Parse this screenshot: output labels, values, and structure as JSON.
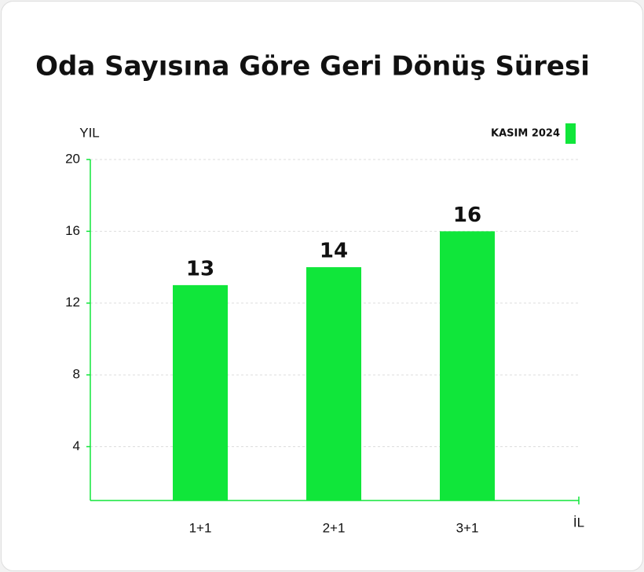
{
  "chart_data": {
    "type": "bar",
    "title": "Oda Sayısına Göre Geri Dönüş Süresi",
    "y_label": "YIL",
    "x_label": "İL",
    "categories": [
      "1+1",
      "2+1",
      "3+1"
    ],
    "series": [
      {
        "name": "KASIM 2024",
        "color": "#10e63a",
        "values": [
          13,
          14,
          16
        ]
      }
    ],
    "ylim": [
      1,
      20
    ],
    "yticks": [
      4,
      8,
      12,
      16,
      20
    ],
    "grid": true
  }
}
